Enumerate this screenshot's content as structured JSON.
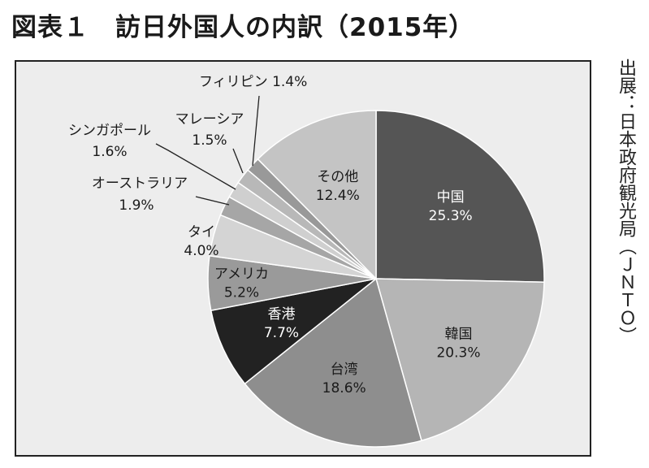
{
  "title": "図表１　訪日外国人の内訳（2015年）",
  "source": "出展：日本政府観光局（ＪＮＴＯ）",
  "chart_data": {
    "type": "pie",
    "slices": [
      {
        "name": "中国",
        "value": 25.3,
        "label": "25.3%",
        "color": "#555555"
      },
      {
        "name": "韓国",
        "value": 20.3,
        "label": "20.3%",
        "color": "#b5b5b5"
      },
      {
        "name": "台湾",
        "value": 18.6,
        "label": "18.6%",
        "color": "#8e8e8e"
      },
      {
        "name": "香港",
        "value": 7.7,
        "label": "7.7%",
        "color": "#222222"
      },
      {
        "name": "アメリカ",
        "value": 5.2,
        "label": "5.2%",
        "color": "#9a9a9a"
      },
      {
        "name": "タイ",
        "value": 4.0,
        "label": "4.0%",
        "color": "#d4d4d4"
      },
      {
        "name": "オーストラリア",
        "value": 1.9,
        "label": "1.9%",
        "color": "#a6a6a6"
      },
      {
        "name": "シンガポール",
        "value": 1.6,
        "label": "1.6%",
        "color": "#cfcfcf"
      },
      {
        "name": "マレーシア",
        "value": 1.5,
        "label": "1.5%",
        "color": "#b8b8b8"
      },
      {
        "name": "フィリピン",
        "value": 1.4,
        "label": "1.4%",
        "color": "#999999"
      },
      {
        "name": "その他",
        "value": 12.4,
        "label": "12.4%",
        "color": "#c4c4c4"
      }
    ]
  }
}
